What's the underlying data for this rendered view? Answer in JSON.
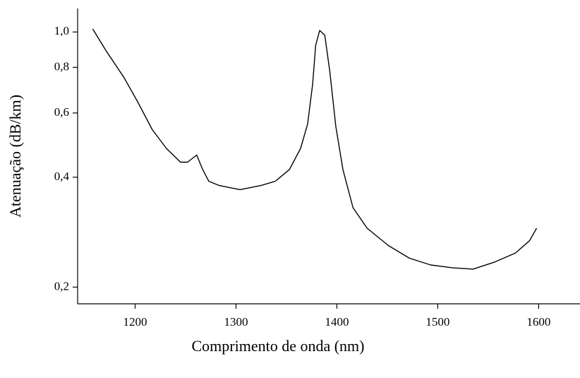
{
  "chart_data": {
    "type": "line",
    "xlabel": "Comprimento de onda (nm)",
    "ylabel": "Atenuação (dB/km)",
    "x": [
      1158,
      1171,
      1189,
      1203,
      1217,
      1231,
      1245,
      1252,
      1261,
      1267,
      1273,
      1283,
      1304,
      1325,
      1339,
      1353,
      1364,
      1371,
      1376,
      1379,
      1383,
      1388,
      1393,
      1399,
      1406,
      1416,
      1430,
      1451,
      1472,
      1493,
      1514,
      1535,
      1556,
      1577,
      1591,
      1598
    ],
    "series": [
      {
        "color": "#000000",
        "values": [
          1.02,
          0.89,
          0.75,
          0.64,
          0.54,
          0.48,
          0.44,
          0.44,
          0.46,
          0.42,
          0.39,
          0.38,
          0.37,
          0.38,
          0.39,
          0.42,
          0.48,
          0.56,
          0.72,
          0.92,
          1.01,
          0.98,
          0.78,
          0.55,
          0.42,
          0.33,
          0.29,
          0.26,
          0.24,
          0.23,
          0.226,
          0.224,
          0.234,
          0.248,
          0.268,
          0.29
        ]
      }
    ],
    "xlim": [
      1143,
      1641
    ],
    "xticks": [
      1200,
      1300,
      1400,
      1500,
      1600
    ],
    "ylim": [
      0.18,
      1.16
    ],
    "yscale": "log",
    "yticks": [
      {
        "value": 0.2,
        "label": "0,2"
      },
      {
        "value": 0.4,
        "label": "0,4"
      },
      {
        "value": 0.6,
        "label": "0,6"
      },
      {
        "value": 0.8,
        "label": "0,8"
      },
      {
        "value": 1.0,
        "label": "1,0"
      }
    ]
  }
}
